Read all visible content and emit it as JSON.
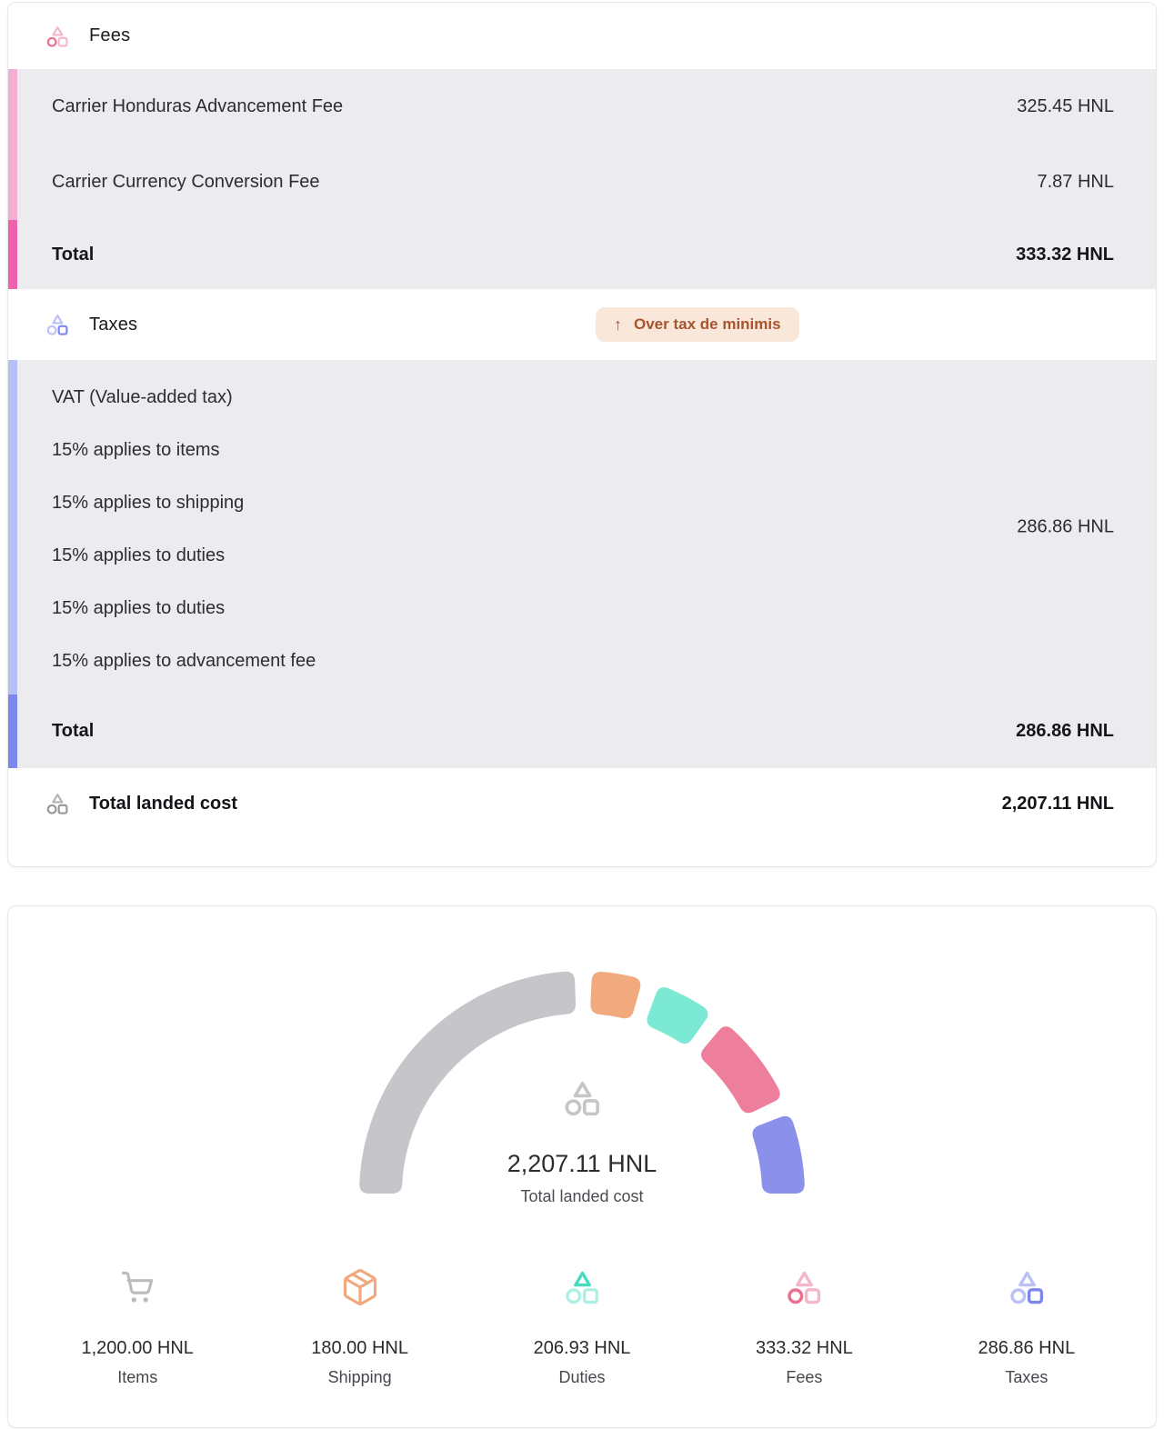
{
  "breakdown": {
    "fees": {
      "title": "Fees",
      "rows": [
        {
          "label": "Carrier Honduras Advancement Fee",
          "value": "325.45 HNL"
        },
        {
          "label": "Carrier Currency Conversion Fee",
          "value": "7.87 HNL"
        }
      ],
      "total": {
        "label": "Total",
        "value": "333.32 HNL"
      }
    },
    "taxes": {
      "title": "Taxes",
      "badge": {
        "arrow": "↑",
        "label": "Over tax de minimis"
      },
      "detail_lines": [
        "VAT (Value-added tax)",
        "15% applies to items",
        "15% applies to shipping",
        "15% applies to duties",
        "15% applies to duties",
        "15% applies to advancement fee"
      ],
      "detail_value": "286.86 HNL",
      "total": {
        "label": "Total",
        "value": "286.86 HNL"
      }
    },
    "grand_total": {
      "label": "Total landed cost",
      "value": "2,207.11 HNL"
    }
  },
  "gauge_center": {
    "value": "2,207.11 HNL",
    "label": "Total landed cost"
  },
  "chart_data": {
    "type": "gauge-donut",
    "title": "Total landed cost",
    "center_value_text": "2,207.11 HNL",
    "total": 2207.11,
    "currency": "HNL",
    "start_angle_deg": 180,
    "end_angle_deg": 0,
    "gap_deg": 4.5,
    "legend_position": "bottom",
    "segments": [
      {
        "label": "Items",
        "value": 1200.0,
        "display": "1,200.00 HNL",
        "color": "#c6c5ca",
        "icon": "cart"
      },
      {
        "label": "Shipping",
        "value": 180.0,
        "display": "180.00 HNL",
        "color": "#f1aa7e",
        "icon": "package"
      },
      {
        "label": "Duties",
        "value": 206.93,
        "display": "206.93 HNL",
        "color": "#7ce9d4",
        "icon": "zonos-duties"
      },
      {
        "label": "Fees",
        "value": 333.32,
        "display": "333.32 HNL",
        "color": "#ee7f9c",
        "icon": "zonos-fees"
      },
      {
        "label": "Taxes",
        "value": 286.86,
        "display": "286.86 HNL",
        "color": "#8b91ea",
        "icon": "zonos-taxes"
      }
    ]
  },
  "colors": {
    "fees_stripe": "#f3aed3",
    "fees_stripe_total": "#ee61ad",
    "taxes_stripe": "#b8bff4",
    "taxes_stripe_total": "#7c88ec",
    "row_bg": "#ececee",
    "badge_bg": "#f9e8da",
    "badge_text": "#a8542f",
    "card_border": "#e7e7ea"
  },
  "icons": {
    "zonos-fees": {
      "triangle": "#f4b6c9",
      "circle": "#ec6f90",
      "square": "#f4b6c9"
    },
    "zonos-taxes": {
      "triangle": "#bbc1f4",
      "circle": "#bbc1f4",
      "square": "#7d87e9"
    },
    "zonos-duties": {
      "triangle": "#47dcc2",
      "circle": "#aeefe5",
      "square": "#aeefe5"
    },
    "zonos-gray": {
      "triangle": "#b3b3b8",
      "circle": "#97979d",
      "square": "#97979d"
    },
    "zonos-center": {
      "triangle": "#c4c4c9",
      "circle": "#c4c4c9",
      "square": "#c4c4c9"
    },
    "cart_color": "#bbbbc0",
    "package_color": "#f0a87c"
  }
}
